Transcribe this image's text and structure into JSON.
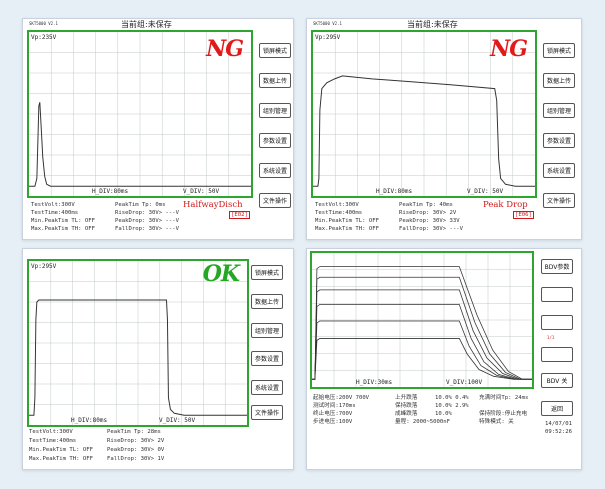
{
  "panels": {
    "tl": {
      "version": "SKT5000 V2.1",
      "title": "当前组:未保存",
      "vp": "Vp:235V",
      "hdiv": "H_DIV:80ms",
      "vdiv": "V_DIV: 50V",
      "badge": "NG",
      "result": "HalfwayDisch",
      "code": "[E02]",
      "buttons": [
        "锁屏模式",
        "数据上传",
        "组别管理",
        "参数设置",
        "系统设置",
        "文件操作"
      ],
      "info": [
        [
          "TestVolt:300V",
          "PeakTim Tp: 0ms"
        ],
        [
          "TestTime:400ms",
          "RiseDrop: 30V>  ---V"
        ],
        [
          "Min.PeakTim TL: OFF",
          "PeakDrop:  30V>  ---V"
        ],
        [
          "Max.PeakTim TH: OFF",
          "FallDrop:  30V>  ---V"
        ]
      ]
    },
    "tr": {
      "version": "SKT5000 V2.1",
      "title": "当前组:未保存",
      "vp": "Vp:295V",
      "hdiv": "H_DIV:80ms",
      "vdiv": "V_DIV: 50V",
      "badge": "NG",
      "result": "Peak Drop",
      "code": "[E06]",
      "buttons": [
        "锁屏模式",
        "数据上传",
        "组别管理",
        "参数设置",
        "系统设置",
        "文件操作"
      ],
      "info": [
        [
          "TestVolt:300V",
          "PeakTim Tp: 40ms"
        ],
        [
          "TestTime:400ms",
          "RiseDrop:   30V>    2V"
        ],
        [
          "Min.PeakTim TL: OFF",
          "PeakDrop:   30V>   33V"
        ],
        [
          "Max.PeakTim TH: OFF",
          "FallDrop:   30V>  ---V"
        ]
      ]
    },
    "bl": {
      "vp": "Vp:295V",
      "hdiv": "H_DIV:80ms",
      "vdiv": "V_DIV: 50V",
      "badge": "OK",
      "buttons": [
        "锁屏模式",
        "数据上传",
        "组别管理",
        "参数设置",
        "系统设置",
        "文件操作"
      ],
      "info": [
        [
          "TestVolt:300V",
          "PeakTim Tp: 28ms"
        ],
        [
          "TestTime:400ms",
          "RiseDrop:  30V>    2V"
        ],
        [
          "Min.PeakTim TL: OFF",
          "PeakDrop:  30V>    0V"
        ],
        [
          "Max.PeakTim TH: OFF",
          "FallDrop:  30V>    1V"
        ]
      ]
    },
    "br": {
      "hdiv": "H_DIV:30ms",
      "vdiv": "V_DIV:100V",
      "buttons": [
        "BDV参数",
        "",
        "",
        "",
        "BDV 关",
        "返回"
      ],
      "small_red": "1/1",
      "info": [
        [
          "起始电压:200V     700V",
          "上升跌落",
          "10.0% 0.4%",
          "充满时间Tp: 24ms"
        ],
        [
          "测试时间:170ms",
          "保持跌落",
          "10.0% 2.9%",
          ""
        ],
        [
          "终止电压:700V",
          "成峰跌落",
          "10.0%",
          "保持阶段:停止充电"
        ],
        [
          "步进电压:100V",
          "量程: 2000~5000nF",
          "",
          "特殊模式: 关"
        ]
      ],
      "date": "14/07/01",
      "time": "09:52:26"
    }
  }
}
